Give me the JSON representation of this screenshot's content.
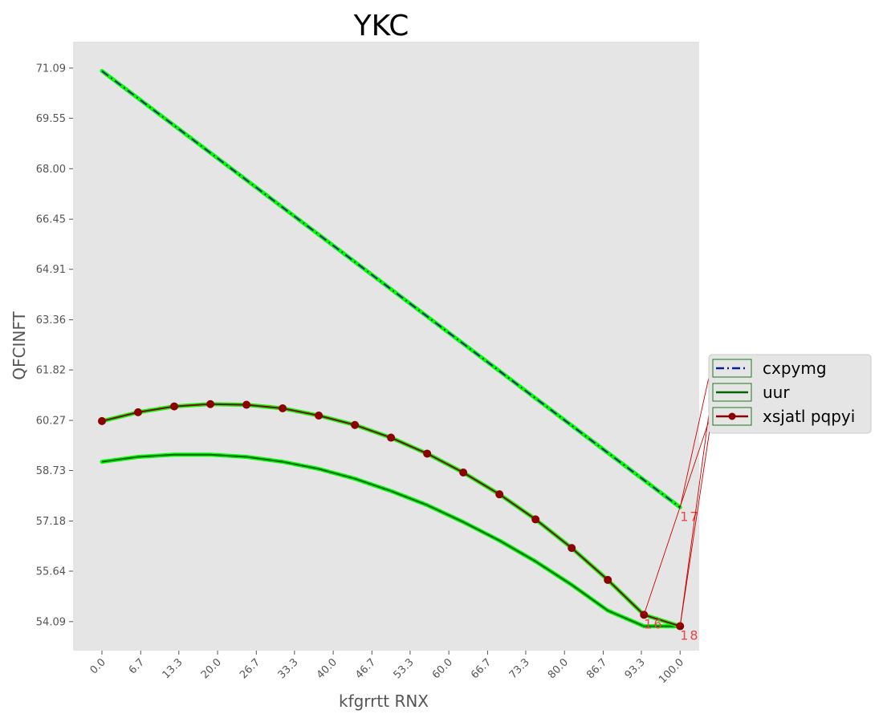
{
  "chart_data": {
    "type": "line",
    "title": "YKC",
    "xlabel": "kfgrrtt RNX",
    "ylabel": "QFCINFT",
    "x_ticks": [
      "0.0",
      "6.7",
      "13.3",
      "20.0",
      "26.7",
      "33.3",
      "40.0",
      "46.7",
      "53.3",
      "60.0",
      "66.7",
      "73.3",
      "80.0",
      "86.7",
      "93.3",
      "100.0"
    ],
    "y_ticks": [
      "54.09",
      "55.64",
      "57.18",
      "58.73",
      "60.27",
      "61.82",
      "63.36",
      "64.91",
      "66.45",
      "68.00",
      "69.55",
      "71.09"
    ],
    "xlim": [
      -5,
      103.3
    ],
    "ylim": [
      53.2,
      71.9
    ],
    "grid": false,
    "legend_position": "center-right outside",
    "series": [
      {
        "name": "cxpymg",
        "color": "#0a1f8f",
        "style": "dashdot",
        "marker": false,
        "x": [
          0,
          100
        ],
        "y": [
          71.0,
          57.6
        ]
      },
      {
        "name": "uur",
        "color": "#006400",
        "style": "solid",
        "marker": false,
        "x": [
          0,
          6.25,
          12.5,
          18.75,
          25,
          31.25,
          37.5,
          43.75,
          50,
          56.25,
          62.5,
          68.75,
          75,
          81.25,
          87.5,
          93.75,
          100
        ],
        "y": [
          59.0,
          59.15,
          59.22,
          59.22,
          59.15,
          59.0,
          58.78,
          58.48,
          58.1,
          57.67,
          57.15,
          56.58,
          55.94,
          55.22,
          54.43,
          53.95,
          53.95
        ]
      },
      {
        "name": "xsjatl pqpyi",
        "color": "#8b0000",
        "style": "solid",
        "marker": true,
        "x": [
          0,
          6.25,
          12.5,
          18.75,
          25,
          31.25,
          37.5,
          43.75,
          50,
          56.25,
          62.5,
          68.75,
          75,
          81.25,
          87.5,
          93.75,
          100
        ],
        "y": [
          60.25,
          60.52,
          60.7,
          60.77,
          60.75,
          60.64,
          60.42,
          60.13,
          59.74,
          59.25,
          58.67,
          58.0,
          57.23,
          56.35,
          55.37,
          54.3,
          53.95
        ]
      }
    ],
    "annotations": [
      {
        "text": "16",
        "x": 93.75,
        "y": 54.3
      },
      {
        "text": "17",
        "x": 100,
        "y": 57.6
      },
      {
        "text": "18",
        "x": 100,
        "y": 53.95
      }
    ]
  },
  "colors": {
    "plot_background": "#e5e5e5",
    "glow": "#00ff00",
    "annotation": "#e8474a"
  }
}
